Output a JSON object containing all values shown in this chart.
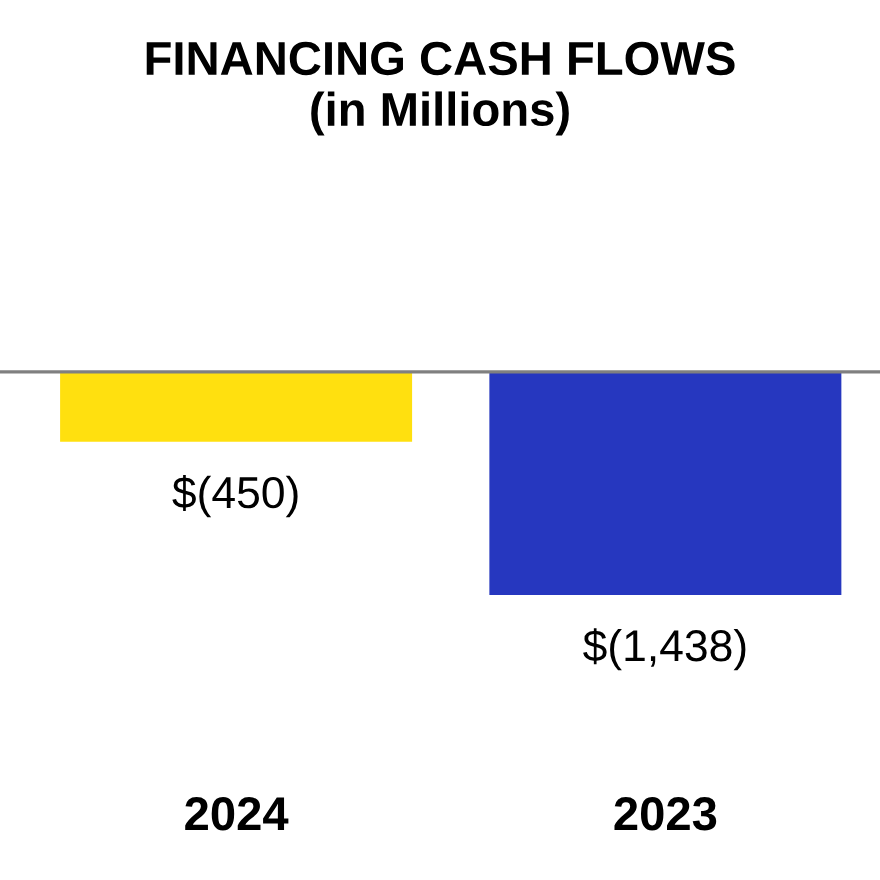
{
  "chart_data": {
    "type": "bar",
    "title": "FINANCING CASH FLOWS\n(in Millions)",
    "categories": [
      "2024",
      "2023"
    ],
    "values": [
      -450,
      -1438
    ],
    "colors": [
      "#ffe00f",
      "#2637bf"
    ],
    "value_labels": [
      "$(450)",
      "$(1,438)"
    ]
  }
}
